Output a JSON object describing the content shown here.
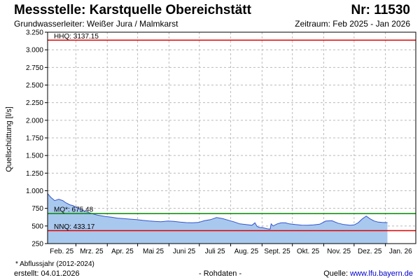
{
  "header": {
    "title": "Messstelle: Karstquelle Obereichstätt",
    "number": "Nr: 11530",
    "aquifer": "Grundwasserleiter:  Weißer Jura / Malmkarst",
    "period": "Zeitraum: Feb 2025 - Jan 2026"
  },
  "footer": {
    "footnote": "* Abflussjahr (2012-2024)",
    "created": "erstellt:  04.01.2026",
    "rawdata": "- Rohdaten -",
    "source_label": "Quelle:",
    "source_link": "www.lfu.bayern.de"
  },
  "colors": {
    "fill": "#a9c8ee",
    "line": "#3355cc",
    "hhq": "#dd0000",
    "nnq": "#dd0000",
    "mq": "#008800",
    "grid": "#bbbbbb"
  },
  "chart_data": {
    "type": "area",
    "ylabel": "Quellschüttung [l/s]",
    "xlabel": "",
    "ylim": [
      250,
      3250
    ],
    "xlim": [
      "2025-02-01",
      "2026-01-31"
    ],
    "grid": true,
    "y_ticks": [
      250,
      500,
      750,
      1000,
      1250,
      1500,
      1750,
      2000,
      2250,
      2500,
      2750,
      3000,
      3250
    ],
    "y_tick_labels": [
      "250",
      "500",
      "750",
      "1.000",
      "1.250",
      "1.500",
      "1.750",
      "2.000",
      "2.250",
      "2.500",
      "2.750",
      "3.000",
      "3.250"
    ],
    "x_tick_labels": [
      "Feb. 25",
      "Mrz. 25",
      "Apr. 25",
      "Mai 25",
      "Juni 25",
      "Juli 25",
      "Aug. 25",
      "Sept. 25",
      "Okt. 25",
      "Nov. 25",
      "Dez. 25",
      "Jan. 26"
    ],
    "x_tick_dates": [
      "2025-02-01",
      "2025-03-01",
      "2025-04-01",
      "2025-05-01",
      "2025-06-01",
      "2025-07-01",
      "2025-08-01",
      "2025-09-01",
      "2025-10-01",
      "2025-11-01",
      "2025-12-01",
      "2026-01-01"
    ],
    "reference_lines": [
      {
        "name": "HHQ",
        "label": "HHQ: 3137.15",
        "value": 3137.15,
        "color": "#dd0000"
      },
      {
        "name": "MQ*",
        "label": "MQ*: 675.48",
        "value": 675.48,
        "color": "#008800"
      },
      {
        "name": "NNQ",
        "label": "NNQ: 433.17",
        "value": 433.17,
        "color": "#dd0000"
      }
    ],
    "series": [
      {
        "x": [
          "2025-02-01",
          "2025-02-04",
          "2025-02-08",
          "2025-02-12",
          "2025-02-16",
          "2025-02-19",
          "2025-02-23",
          "2025-02-26",
          "2025-03-02",
          "2025-03-06",
          "2025-03-10",
          "2025-03-14",
          "2025-03-18",
          "2025-03-22",
          "2025-03-26",
          "2025-03-30",
          "2025-04-05",
          "2025-04-11",
          "2025-04-17",
          "2025-04-23",
          "2025-04-30",
          "2025-05-06",
          "2025-05-12",
          "2025-05-18",
          "2025-05-24",
          "2025-05-31",
          "2025-06-06",
          "2025-06-12",
          "2025-06-18",
          "2025-06-24",
          "2025-06-30",
          "2025-07-06",
          "2025-07-12",
          "2025-07-18",
          "2025-07-24",
          "2025-07-30",
          "2025-08-04",
          "2025-08-10",
          "2025-08-16",
          "2025-08-22",
          "2025-08-25",
          "2025-08-27",
          "2025-08-29",
          "2025-09-02",
          "2025-09-06",
          "2025-09-09",
          "2025-09-10",
          "2025-09-12",
          "2025-09-16",
          "2025-09-20",
          "2025-09-24",
          "2025-09-28",
          "2025-10-04",
          "2025-10-10",
          "2025-10-16",
          "2025-10-22",
          "2025-10-28",
          "2025-11-03",
          "2025-11-09",
          "2025-11-15",
          "2025-11-21",
          "2025-11-27",
          "2025-12-01",
          "2025-12-05",
          "2025-12-09",
          "2025-12-13",
          "2025-12-17",
          "2025-12-21",
          "2025-12-25",
          "2025-12-29",
          "2026-01-01",
          "2026-01-03"
        ],
        "values": [
          960,
          910,
          860,
          880,
          860,
          830,
          800,
          790,
          760,
          730,
          710,
          690,
          670,
          655,
          645,
          635,
          625,
          612,
          605,
          598,
          590,
          580,
          572,
          566,
          560,
          570,
          565,
          555,
          548,
          545,
          550,
          575,
          590,
          620,
          605,
          580,
          560,
          530,
          520,
          510,
          545,
          495,
          480,
          475,
          462,
          455,
          530,
          500,
          530,
          545,
          545,
          530,
          520,
          512,
          510,
          515,
          525,
          570,
          575,
          540,
          520,
          510,
          515,
          545,
          600,
          640,
          600,
          570,
          555,
          550,
          548,
          548
        ]
      }
    ]
  }
}
